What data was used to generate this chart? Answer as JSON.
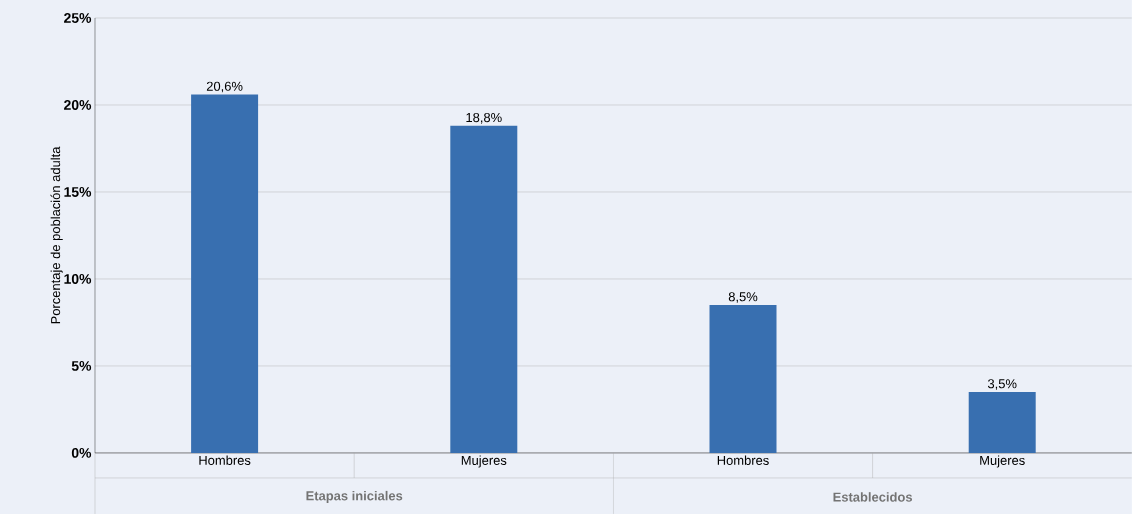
{
  "chart_data": {
    "type": "bar",
    "ylabel": "Porcentaje de población adulta",
    "categories": [
      "Hombres",
      "Mujeres",
      "Hombres",
      "Mujeres"
    ],
    "values": [
      20.6,
      18.8,
      8.5,
      3.5
    ],
    "color": "#386fb0",
    "value_labels": [
      "20,6%",
      "18,8%",
      "8,5%",
      "3,5%"
    ],
    "ylim": [
      0,
      25
    ],
    "yticks": [
      {
        "value": 0,
        "label": "0%"
      },
      {
        "value": 5,
        "label": "5%"
      },
      {
        "value": 10,
        "label": "10%"
      },
      {
        "value": 15,
        "label": "15%"
      },
      {
        "value": 20,
        "label": "20%"
      },
      {
        "value": 25,
        "label": "25%"
      }
    ],
    "grid": "y",
    "annotations": [
      "Etapas iniciales",
      "Establecidos"
    ]
  }
}
